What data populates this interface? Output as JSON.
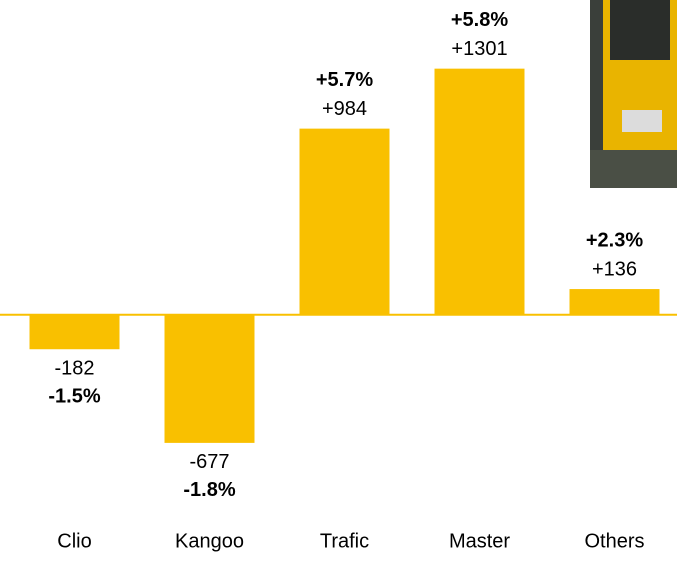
{
  "chart_data": {
    "type": "bar",
    "categories": [
      "Clio",
      "Kangoo",
      "Trafic",
      "Master",
      "Others"
    ],
    "values": [
      -182,
      -677,
      984,
      1301,
      136
    ],
    "value_labels": [
      "-182",
      "-677",
      "+984",
      "+1301",
      "+136"
    ],
    "percent_labels": [
      "-1.5%",
      "-1.8%",
      "+5.7%",
      "+5.8%",
      "+2.3%"
    ],
    "color": "#f9c000",
    "ylim": [
      -1000,
      1500
    ]
  }
}
